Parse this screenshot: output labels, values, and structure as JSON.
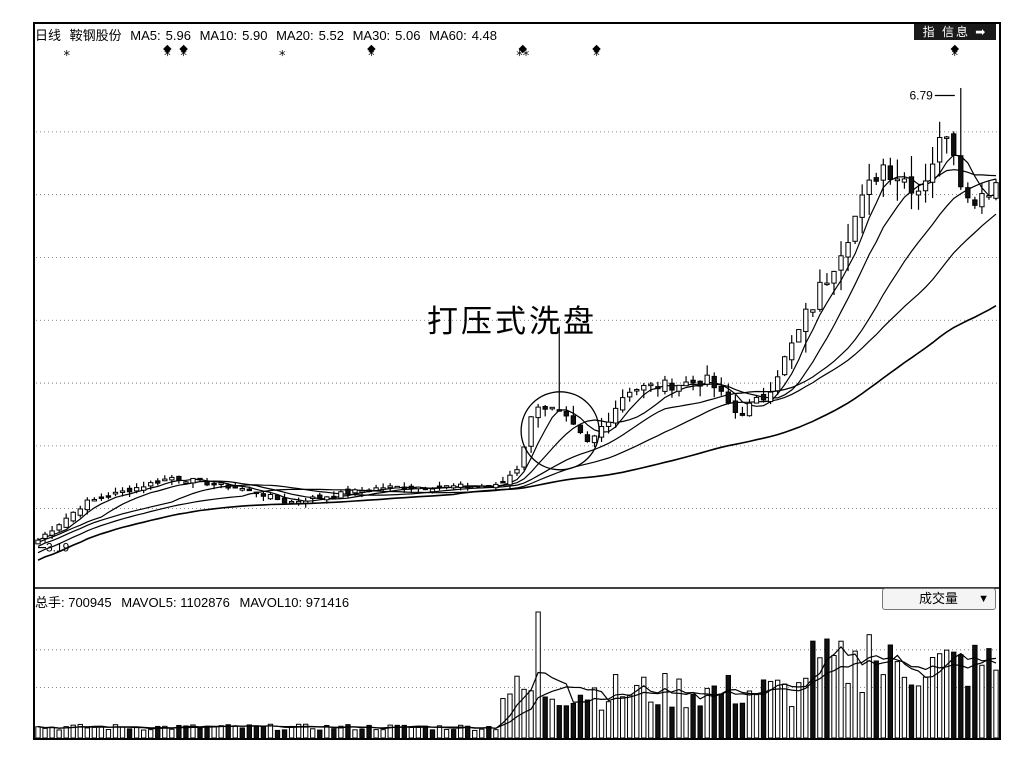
{
  "header": {
    "period": "日线",
    "stock_name": "鞍钢股份",
    "ma_items": [
      {
        "label": "MA5:",
        "value": "5.96"
      },
      {
        "label": "MA10:",
        "value": "5.90"
      },
      {
        "label": "MA20:",
        "value": "5.52"
      },
      {
        "label": "MA30:",
        "value": "5.06"
      },
      {
        "label": "MA60:",
        "value": "4.48"
      }
    ],
    "info_button": "指 信息 ➡"
  },
  "annotation": "打压式洗盘",
  "volume_header": {
    "total": "总手: 700945",
    "mavol5": "MAVOL5: 1102876",
    "mavol10": "MAVOL10: 971416",
    "indicator": "成交量",
    "dropdown_icon": "triangle-down-icon"
  },
  "chart_data": {
    "type": "candlestick",
    "y_range": [
      2.9,
      7.2
    ],
    "price_min_label": "3.19",
    "price_max_label": "6.79",
    "price_gridlines": [
      3.5,
      4.0,
      4.5,
      5.0,
      5.5,
      6.0,
      6.5
    ],
    "volume_gridlines": [
      0.4,
      0.7
    ],
    "key_points": [
      {
        "t": 0,
        "close": 3.25
      },
      {
        "t": 0.05,
        "close": 3.55
      },
      {
        "t": 0.14,
        "close": 3.75
      },
      {
        "t": 0.22,
        "close": 3.65
      },
      {
        "t": 0.26,
        "close": 3.55
      },
      {
        "t": 0.36,
        "close": 3.67
      },
      {
        "t": 0.48,
        "close": 3.68
      },
      {
        "t": 0.5,
        "close": 3.82
      },
      {
        "t": 0.52,
        "close": 4.35
      },
      {
        "t": 0.545,
        "close": 4.25
      },
      {
        "t": 0.575,
        "close": 4.0
      },
      {
        "t": 0.615,
        "close": 4.45
      },
      {
        "t": 0.7,
        "close": 4.52
      },
      {
        "t": 0.73,
        "close": 4.25
      },
      {
        "t": 0.76,
        "close": 4.4
      },
      {
        "t": 0.82,
        "close": 5.3
      },
      {
        "t": 0.88,
        "close": 6.25
      },
      {
        "t": 0.92,
        "close": 6.05
      },
      {
        "t": 0.95,
        "close": 6.55
      },
      {
        "t": 0.97,
        "close": 5.95
      },
      {
        "t": 1.0,
        "close": 6.1
      }
    ],
    "markers": [
      {
        "t": 0.03,
        "symbol": "*"
      },
      {
        "t": 0.135,
        "symbol": "◆*"
      },
      {
        "t": 0.152,
        "symbol": "◆*"
      },
      {
        "t": 0.255,
        "symbol": "*"
      },
      {
        "t": 0.348,
        "symbol": "◆*"
      },
      {
        "t": 0.506,
        "symbol": "◆**"
      },
      {
        "t": 0.583,
        "symbol": "◆*"
      },
      {
        "t": 0.957,
        "symbol": "◆*"
      }
    ],
    "moving_averages": [
      "MA5",
      "MA10",
      "MA20",
      "MA30",
      "MA60"
    ]
  }
}
